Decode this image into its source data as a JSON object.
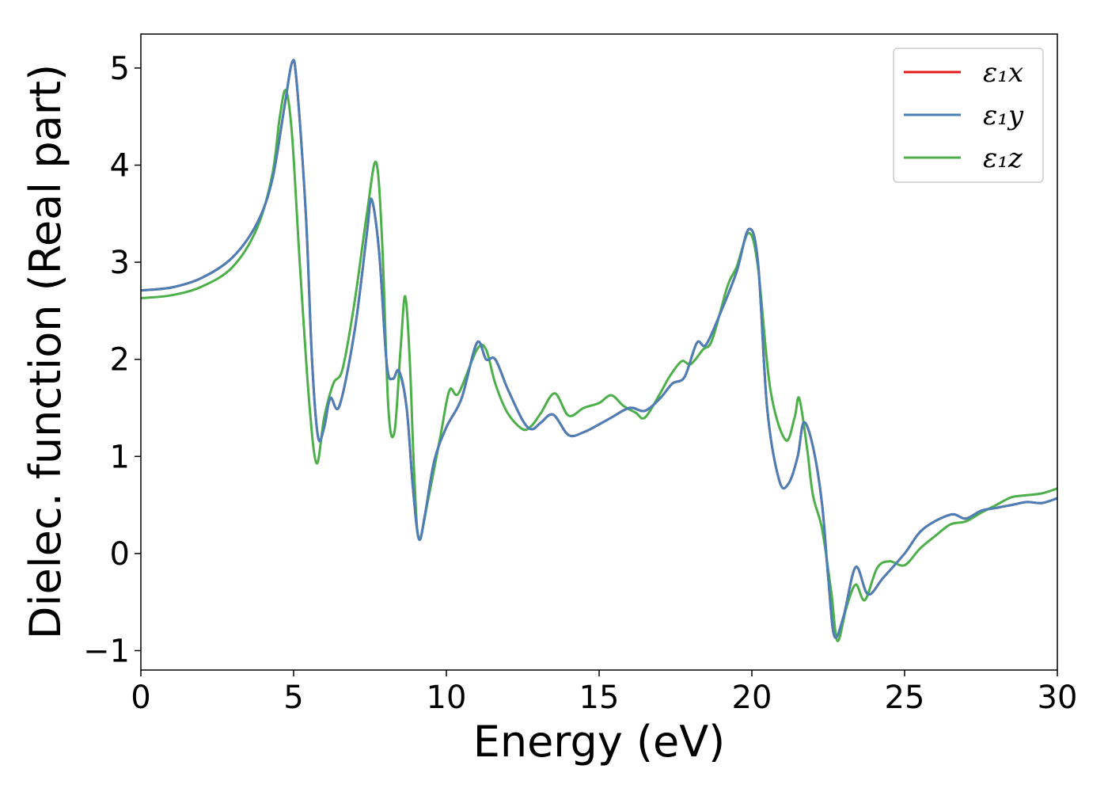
{
  "chart_data": {
    "type": "line",
    "xlabel": "Energy (eV)",
    "ylabel": "Dielec. function (Real part)",
    "xlim": [
      0,
      30
    ],
    "ylim": [
      -1.2,
      5.35
    ],
    "xticks": [
      0,
      5,
      10,
      15,
      20,
      25,
      30
    ],
    "yticks": [
      -1,
      0,
      1,
      2,
      3,
      4,
      5
    ],
    "grid": false,
    "legend_position": "top-right",
    "legend": [
      {
        "label": "ε₁x",
        "color": "#e41a1c"
      },
      {
        "label": "ε₁y",
        "color": "#4a7fb8"
      },
      {
        "label": "ε₁z",
        "color": "#4daf4a"
      }
    ],
    "series": [
      {
        "name": "ε₁x",
        "color": "#e41a1c",
        "points": [
          [
            0,
            2.71
          ],
          [
            1,
            2.74
          ],
          [
            2,
            2.84
          ],
          [
            3,
            3.05
          ],
          [
            3.8,
            3.4
          ],
          [
            4.3,
            3.85
          ],
          [
            4.7,
            4.6
          ],
          [
            4.95,
            5.06
          ],
          [
            5.1,
            4.85
          ],
          [
            5.4,
            3.5
          ],
          [
            5.6,
            2.0
          ],
          [
            5.8,
            1.2
          ],
          [
            6.0,
            1.3
          ],
          [
            6.2,
            1.6
          ],
          [
            6.5,
            1.52
          ],
          [
            7.0,
            2.3
          ],
          [
            7.4,
            3.3
          ],
          [
            7.55,
            3.65
          ],
          [
            7.8,
            3.1
          ],
          [
            8.05,
            1.95
          ],
          [
            8.25,
            1.8
          ],
          [
            8.45,
            1.88
          ],
          [
            8.7,
            1.5
          ],
          [
            8.9,
            0.7
          ],
          [
            9.1,
            0.15
          ],
          [
            9.3,
            0.4
          ],
          [
            9.6,
            0.95
          ],
          [
            10.0,
            1.3
          ],
          [
            10.5,
            1.6
          ],
          [
            11.0,
            2.17
          ],
          [
            11.3,
            2.0
          ],
          [
            11.6,
            2.0
          ],
          [
            12.0,
            1.7
          ],
          [
            12.5,
            1.37
          ],
          [
            12.8,
            1.28
          ],
          [
            13.1,
            1.35
          ],
          [
            13.5,
            1.43
          ],
          [
            14.0,
            1.22
          ],
          [
            14.5,
            1.25
          ],
          [
            15.0,
            1.33
          ],
          [
            15.4,
            1.4
          ],
          [
            16.0,
            1.5
          ],
          [
            16.5,
            1.47
          ],
          [
            17.0,
            1.6
          ],
          [
            17.4,
            1.75
          ],
          [
            17.8,
            1.82
          ],
          [
            18.2,
            2.17
          ],
          [
            18.5,
            2.15
          ],
          [
            19.0,
            2.5
          ],
          [
            19.5,
            2.9
          ],
          [
            19.9,
            3.34
          ],
          [
            20.2,
            3.0
          ],
          [
            20.5,
            1.5
          ],
          [
            20.9,
            0.75
          ],
          [
            21.2,
            0.72
          ],
          [
            21.5,
            1.0
          ],
          [
            21.7,
            1.35
          ],
          [
            22.0,
            1.1
          ],
          [
            22.3,
            0.5
          ],
          [
            22.5,
            -0.25
          ],
          [
            22.7,
            -0.85
          ],
          [
            23.0,
            -0.65
          ],
          [
            23.4,
            -0.14
          ],
          [
            23.8,
            -0.42
          ],
          [
            24.3,
            -0.25
          ],
          [
            25.0,
            0.0
          ],
          [
            25.6,
            0.25
          ],
          [
            26.5,
            0.4
          ],
          [
            27.0,
            0.36
          ],
          [
            27.5,
            0.44
          ],
          [
            28.0,
            0.47
          ],
          [
            28.5,
            0.5
          ],
          [
            29.0,
            0.53
          ],
          [
            29.5,
            0.52
          ],
          [
            30.0,
            0.57
          ]
        ]
      },
      {
        "name": "ε₁y",
        "color": "#4a7fb8",
        "points": [
          [
            0,
            2.71
          ],
          [
            1,
            2.74
          ],
          [
            2,
            2.84
          ],
          [
            3,
            3.05
          ],
          [
            3.8,
            3.4
          ],
          [
            4.3,
            3.85
          ],
          [
            4.7,
            4.6
          ],
          [
            4.95,
            5.06
          ],
          [
            5.1,
            4.85
          ],
          [
            5.4,
            3.5
          ],
          [
            5.6,
            2.0
          ],
          [
            5.8,
            1.2
          ],
          [
            6.0,
            1.3
          ],
          [
            6.2,
            1.6
          ],
          [
            6.5,
            1.52
          ],
          [
            7.0,
            2.3
          ],
          [
            7.4,
            3.3
          ],
          [
            7.55,
            3.65
          ],
          [
            7.8,
            3.1
          ],
          [
            8.05,
            1.95
          ],
          [
            8.25,
            1.8
          ],
          [
            8.45,
            1.88
          ],
          [
            8.7,
            1.5
          ],
          [
            8.9,
            0.7
          ],
          [
            9.1,
            0.15
          ],
          [
            9.3,
            0.4
          ],
          [
            9.6,
            0.95
          ],
          [
            10.0,
            1.3
          ],
          [
            10.5,
            1.6
          ],
          [
            11.0,
            2.17
          ],
          [
            11.3,
            2.0
          ],
          [
            11.6,
            2.0
          ],
          [
            12.0,
            1.7
          ],
          [
            12.5,
            1.37
          ],
          [
            12.8,
            1.28
          ],
          [
            13.1,
            1.35
          ],
          [
            13.5,
            1.43
          ],
          [
            14.0,
            1.22
          ],
          [
            14.5,
            1.25
          ],
          [
            15.0,
            1.33
          ],
          [
            15.4,
            1.4
          ],
          [
            16.0,
            1.5
          ],
          [
            16.5,
            1.47
          ],
          [
            17.0,
            1.6
          ],
          [
            17.4,
            1.75
          ],
          [
            17.8,
            1.82
          ],
          [
            18.2,
            2.17
          ],
          [
            18.5,
            2.15
          ],
          [
            19.0,
            2.5
          ],
          [
            19.5,
            2.9
          ],
          [
            19.9,
            3.34
          ],
          [
            20.2,
            3.0
          ],
          [
            20.5,
            1.5
          ],
          [
            20.9,
            0.75
          ],
          [
            21.2,
            0.72
          ],
          [
            21.5,
            1.0
          ],
          [
            21.7,
            1.35
          ],
          [
            22.0,
            1.1
          ],
          [
            22.3,
            0.5
          ],
          [
            22.5,
            -0.25
          ],
          [
            22.7,
            -0.85
          ],
          [
            23.0,
            -0.65
          ],
          [
            23.4,
            -0.14
          ],
          [
            23.8,
            -0.42
          ],
          [
            24.3,
            -0.25
          ],
          [
            25.0,
            0.0
          ],
          [
            25.6,
            0.25
          ],
          [
            26.5,
            0.4
          ],
          [
            27.0,
            0.36
          ],
          [
            27.5,
            0.44
          ],
          [
            28.0,
            0.47
          ],
          [
            28.5,
            0.5
          ],
          [
            29.0,
            0.53
          ],
          [
            29.5,
            0.52
          ],
          [
            30.0,
            0.57
          ]
        ]
      },
      {
        "name": "ε₁z",
        "color": "#4daf4a",
        "points": [
          [
            0,
            2.63
          ],
          [
            1,
            2.66
          ],
          [
            2,
            2.75
          ],
          [
            3,
            2.95
          ],
          [
            3.8,
            3.35
          ],
          [
            4.3,
            3.9
          ],
          [
            4.55,
            4.5
          ],
          [
            4.75,
            4.77
          ],
          [
            4.95,
            4.3
          ],
          [
            5.2,
            3.0
          ],
          [
            5.5,
            1.6
          ],
          [
            5.75,
            0.93
          ],
          [
            6.0,
            1.4
          ],
          [
            6.3,
            1.75
          ],
          [
            6.6,
            1.9
          ],
          [
            7.0,
            2.6
          ],
          [
            7.4,
            3.5
          ],
          [
            7.7,
            4.03
          ],
          [
            7.9,
            3.2
          ],
          [
            8.1,
            1.5
          ],
          [
            8.3,
            1.25
          ],
          [
            8.5,
            2.1
          ],
          [
            8.65,
            2.65
          ],
          [
            8.8,
            2.0
          ],
          [
            8.95,
            0.8
          ],
          [
            9.1,
            0.15
          ],
          [
            9.4,
            0.55
          ],
          [
            9.8,
            1.2
          ],
          [
            10.1,
            1.68
          ],
          [
            10.4,
            1.65
          ],
          [
            11.0,
            2.1
          ],
          [
            11.3,
            2.1
          ],
          [
            11.6,
            1.75
          ],
          [
            12.0,
            1.45
          ],
          [
            12.5,
            1.28
          ],
          [
            12.8,
            1.32
          ],
          [
            13.1,
            1.45
          ],
          [
            13.55,
            1.65
          ],
          [
            14.0,
            1.42
          ],
          [
            14.5,
            1.5
          ],
          [
            15.0,
            1.55
          ],
          [
            15.4,
            1.63
          ],
          [
            15.8,
            1.52
          ],
          [
            16.2,
            1.45
          ],
          [
            16.5,
            1.4
          ],
          [
            17.0,
            1.65
          ],
          [
            17.3,
            1.82
          ],
          [
            17.7,
            1.98
          ],
          [
            18.0,
            1.95
          ],
          [
            18.4,
            2.1
          ],
          [
            18.7,
            2.2
          ],
          [
            19.2,
            2.75
          ],
          [
            19.5,
            2.95
          ],
          [
            19.9,
            3.3
          ],
          [
            20.2,
            2.95
          ],
          [
            20.6,
            1.7
          ],
          [
            21.1,
            1.17
          ],
          [
            21.4,
            1.4
          ],
          [
            21.55,
            1.6
          ],
          [
            21.8,
            1.1
          ],
          [
            22.0,
            0.6
          ],
          [
            22.3,
            0.25
          ],
          [
            22.6,
            -0.4
          ],
          [
            22.8,
            -0.9
          ],
          [
            23.1,
            -0.55
          ],
          [
            23.4,
            -0.32
          ],
          [
            23.7,
            -0.48
          ],
          [
            24.1,
            -0.15
          ],
          [
            24.5,
            -0.08
          ],
          [
            25.0,
            -0.12
          ],
          [
            25.5,
            0.05
          ],
          [
            26.0,
            0.18
          ],
          [
            26.5,
            0.3
          ],
          [
            27.0,
            0.33
          ],
          [
            27.5,
            0.42
          ],
          [
            28.0,
            0.5
          ],
          [
            28.5,
            0.58
          ],
          [
            29.0,
            0.6
          ],
          [
            29.5,
            0.62
          ],
          [
            30.0,
            0.67
          ]
        ]
      }
    ]
  }
}
